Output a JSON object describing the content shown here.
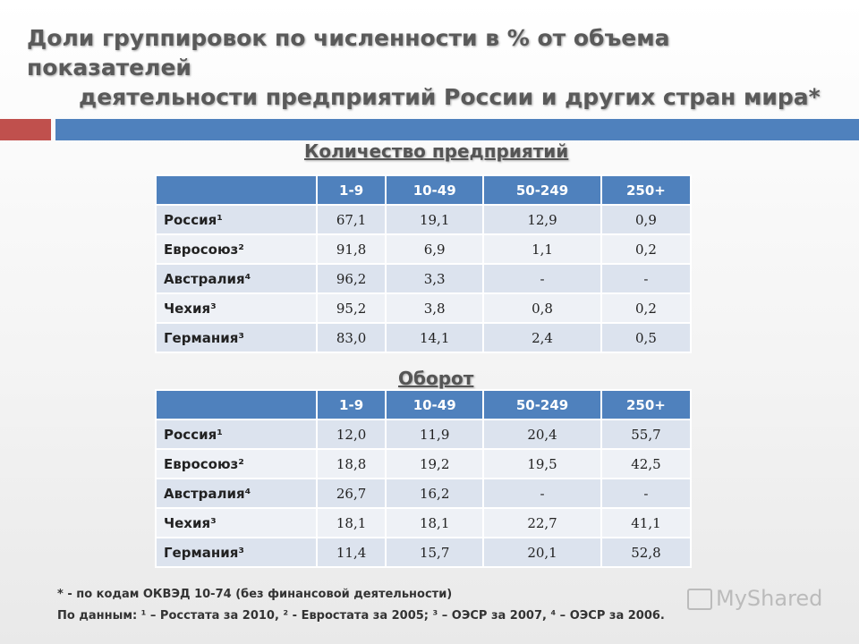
{
  "title": {
    "line1": "Доли группировок по численности в % от объема показателей",
    "line2": "деятельности предприятий России и других стран мира*"
  },
  "table1": {
    "heading": "Количество предприятий",
    "columns": [
      "",
      "1-9",
      "10-49",
      "50-249",
      "250+"
    ],
    "rows": [
      {
        "country": "Россия¹",
        "v": [
          "67,1",
          "19,1",
          "12,9",
          "0,9"
        ]
      },
      {
        "country": "Евросоюз²",
        "v": [
          "91,8",
          "6,9",
          "1,1",
          "0,2"
        ]
      },
      {
        "country": "Австралия⁴",
        "v": [
          "96,2",
          "3,3",
          "-",
          "-"
        ]
      },
      {
        "country": "Чехия³",
        "v": [
          "95,2",
          "3,8",
          "0,8",
          "0,2"
        ]
      },
      {
        "country": "Германия³",
        "v": [
          "83,0",
          "14,1",
          "2,4",
          "0,5"
        ]
      }
    ]
  },
  "table2": {
    "heading": "Оборот",
    "columns": [
      "",
      "1-9",
      "10-49",
      "50-249",
      "250+"
    ],
    "rows": [
      {
        "country": "Россия¹",
        "v": [
          "12,0",
          "11,9",
          "20,4",
          "55,7"
        ]
      },
      {
        "country": "Евросоюз²",
        "v": [
          "18,8",
          "19,2",
          "19,5",
          "42,5"
        ]
      },
      {
        "country": "Австралия⁴",
        "v": [
          "26,7",
          "16,2",
          "-",
          "-"
        ]
      },
      {
        "country": "Чехия³",
        "v": [
          "18,1",
          "18,1",
          "22,7",
          "41,1"
        ]
      },
      {
        "country": "Германия³",
        "v": [
          "11,4",
          "15,7",
          "20,1",
          "52,8"
        ]
      }
    ]
  },
  "footnote1": "* - по кодам ОКВЭД 10-74 (без финансовой деятельности)",
  "footnote2": "По данным: ¹ – Росстата за 2010, ² - Евростата за 2005; ³ – ОЭСР за 2007, ⁴ – ОЭСР за 2006.",
  "watermark": "MyShared",
  "colors": {
    "accent_blue": "#4f81bd",
    "accent_red": "#c0504d"
  }
}
